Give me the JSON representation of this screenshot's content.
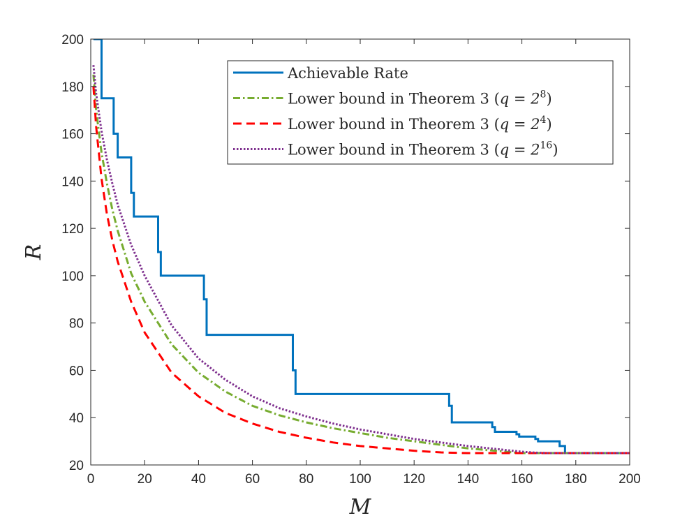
{
  "chart_data": {
    "type": "line",
    "title": "",
    "xlabel": "M",
    "ylabel": "R",
    "xlim": [
      0,
      200
    ],
    "ylim": [
      20,
      200
    ],
    "xticks": [
      0,
      20,
      40,
      60,
      80,
      100,
      120,
      140,
      160,
      180,
      200
    ],
    "yticks": [
      20,
      40,
      60,
      80,
      100,
      120,
      140,
      160,
      180,
      200
    ],
    "x_tick_labels": [
      "0",
      "20",
      "40",
      "60",
      "80",
      "100",
      "120",
      "140",
      "160",
      "180",
      "200"
    ],
    "y_tick_labels": [
      "20",
      "40",
      "60",
      "80",
      "100",
      "120",
      "140",
      "160",
      "180",
      "200"
    ],
    "grid": false,
    "legend_position": "top-right",
    "series": [
      {
        "name": "Achievable Rate",
        "legend_prefix": "Achievable Rate",
        "legend_base": "",
        "legend_exp": "",
        "legend_suffix": "",
        "color": "#0072BD",
        "style": "solid",
        "x": [
          1,
          4,
          4,
          8.5,
          8.5,
          10,
          10,
          15,
          15,
          16,
          16,
          25,
          25,
          26,
          26,
          42,
          42,
          43,
          43,
          75,
          75,
          76,
          76,
          133,
          133,
          134,
          134,
          149,
          149,
          150,
          150,
          158,
          158,
          159,
          159,
          165,
          165,
          166,
          166,
          174,
          174,
          176,
          176,
          200
        ],
        "y": [
          200,
          200,
          175,
          175,
          160,
          160,
          150,
          150,
          135,
          135,
          125,
          125,
          110,
          110,
          100,
          100,
          90,
          90,
          75,
          75,
          60,
          60,
          50,
          50,
          45,
          45,
          38,
          38,
          36,
          36,
          34,
          34,
          33,
          33,
          32,
          32,
          31,
          31,
          30,
          30,
          28,
          28,
          25,
          25
        ]
      },
      {
        "name": "Lower bound in Theorem 3 (q = 2^8)",
        "legend_prefix": "Lower bound in Theorem 3 (",
        "legend_base": "q = 2",
        "legend_exp": "8",
        "legend_suffix": ")",
        "color": "#77AC30",
        "style": "dashdot",
        "x": [
          1,
          2,
          4,
          6,
          8,
          10,
          15,
          20,
          30,
          40,
          50,
          60,
          70,
          80,
          90,
          100,
          110,
          120,
          130,
          140,
          150,
          155,
          160,
          170,
          180,
          190,
          200
        ],
        "y": [
          185,
          170,
          152,
          139,
          128,
          119,
          101,
          89,
          71,
          59,
          51,
          45,
          41,
          38,
          35.5,
          33.5,
          31.5,
          30,
          28.5,
          27,
          26,
          25.5,
          25,
          25,
          25,
          25,
          25
        ]
      },
      {
        "name": "Lower bound in Theorem 3 (q = 2^4)",
        "legend_prefix": "Lower bound in Theorem 3 (",
        "legend_base": "q = 2",
        "legend_exp": "4",
        "legend_suffix": ")",
        "color": "#FF0000",
        "style": "dashed",
        "x": [
          1,
          2,
          4,
          6,
          8,
          10,
          15,
          20,
          30,
          40,
          50,
          60,
          70,
          80,
          90,
          100,
          110,
          120,
          130,
          140,
          150,
          160,
          170,
          180,
          190,
          200
        ],
        "y": [
          180,
          163,
          141,
          126,
          115,
          106,
          89,
          76,
          59,
          49,
          42,
          37.5,
          34,
          31.5,
          29.5,
          28,
          27,
          26,
          25.3,
          25,
          25,
          25,
          25,
          25,
          25,
          25
        ]
      },
      {
        "name": "Lower bound in Theorem 3 (q = 2^16)",
        "legend_prefix": "Lower bound in Theorem 3 (",
        "legend_base": "q = 2",
        "legend_exp": "16",
        "legend_suffix": ")",
        "color": "#7E2F8E",
        "style": "dotted",
        "x": [
          1,
          2,
          4,
          6,
          8,
          10,
          15,
          20,
          30,
          40,
          50,
          60,
          70,
          80,
          90,
          100,
          110,
          120,
          130,
          140,
          150,
          160,
          165,
          170,
          180,
          190,
          200
        ],
        "y": [
          189,
          177,
          161,
          149,
          139,
          130,
          113,
          100,
          79,
          65,
          56,
          49,
          44,
          40.5,
          37.5,
          35,
          33,
          31,
          29.5,
          28,
          26.8,
          25.6,
          25.2,
          25,
          25,
          25,
          25
        ]
      }
    ]
  }
}
